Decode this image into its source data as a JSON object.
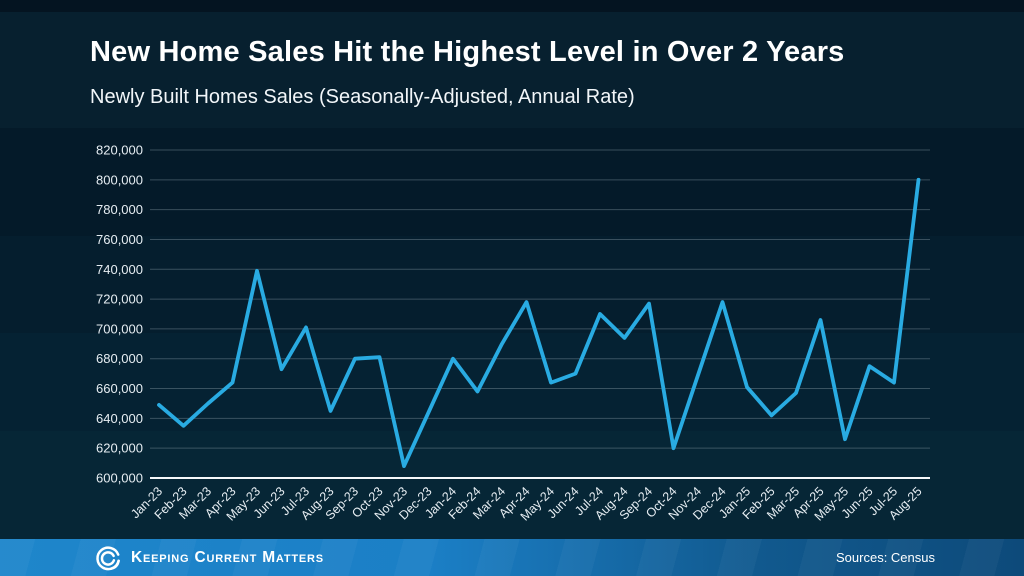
{
  "header": {
    "title": "New Home Sales Hit the Highest Level in Over 2 Years",
    "subtitle": "Newly Built Homes Sales (Seasonally-Adjusted, Annual Rate)"
  },
  "chart_data": {
    "type": "line",
    "title": "New Home Sales Hit the Highest Level in Over 2 Years",
    "subtitle": "Newly Built Homes Sales (Seasonally-Adjusted, Annual Rate)",
    "xlabel": "",
    "ylabel": "",
    "grid": true,
    "legend": false,
    "ylim": [
      600000,
      820000
    ],
    "ytick_step": 20000,
    "categories": [
      "Jan-23",
      "Feb-23",
      "Mar-23",
      "Apr-23",
      "May-23",
      "Jun-23",
      "Jul-23",
      "Aug-23",
      "Sep-23",
      "Oct-23",
      "Nov-23",
      "Dec-23",
      "Jan-24",
      "Feb-24",
      "Mar-24",
      "Apr-24",
      "May-24",
      "Jun-24",
      "Jul-24",
      "Aug-24",
      "Sep-24",
      "Oct-24",
      "Nov-24",
      "Dec-24",
      "Jan-25",
      "Feb-25",
      "Mar-25",
      "Apr-25",
      "May-25",
      "Jun-25",
      "Jul-25",
      "Aug-25"
    ],
    "values": [
      649000,
      635000,
      650000,
      664000,
      739000,
      673000,
      701000,
      645000,
      680000,
      681000,
      608000,
      644000,
      680000,
      658000,
      690000,
      718000,
      664000,
      670000,
      710000,
      694000,
      717000,
      620000,
      669000,
      718000,
      661000,
      642000,
      657000,
      706000,
      626000,
      675000,
      664000,
      800000
    ],
    "line_color": "#29abe2",
    "axis_text_color": "#e6edf2",
    "axis_line_color": "#f5f8fa",
    "gridline_color": "#91a2ad"
  },
  "footer": {
    "brand": "Keeping Current Matters",
    "sources": "Sources: Census",
    "bar_color_left": "#1e86cb",
    "bar_color_right": "#0d4a7a"
  },
  "colors": {
    "background_dark": "#041a29",
    "title_text": "#ffffff"
  }
}
